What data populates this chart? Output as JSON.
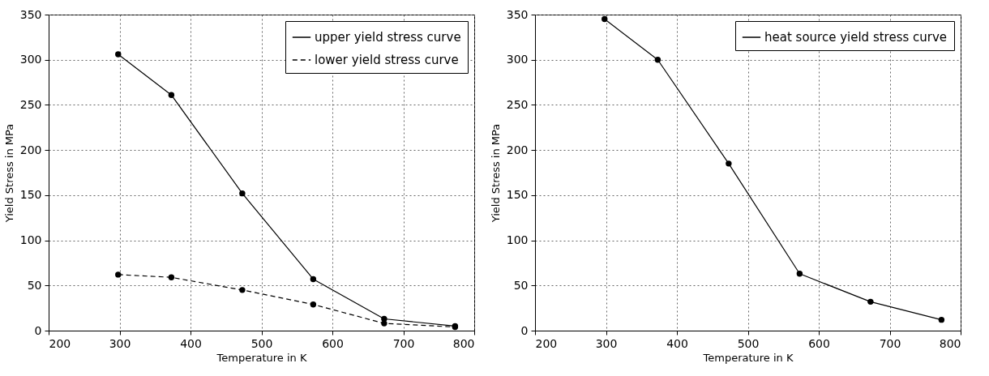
{
  "chart_data": [
    {
      "type": "line",
      "xlabel": "Temperature in K",
      "ylabel": "Yield Stress in MPa",
      "x": [
        298,
        373,
        473,
        573,
        673,
        773
      ],
      "xlim": [
        200,
        800
      ],
      "xticks": [
        200,
        300,
        400,
        500,
        600,
        700,
        800
      ],
      "ylim": [
        0,
        350
      ],
      "yticks": [
        0,
        50,
        100,
        150,
        200,
        250,
        300,
        350
      ],
      "grid": true,
      "legend": "top right",
      "marker": "circle",
      "series": [
        {
          "name": "upper yield stress curve",
          "color": "#000000",
          "line_style": "solid",
          "values": [
            306,
            261,
            152,
            57,
            13,
            5
          ]
        },
        {
          "name": "lower yield stress curve",
          "color": "#000000",
          "line_style": "dashed",
          "values": [
            62,
            59,
            45,
            29,
            8,
            4
          ]
        }
      ]
    },
    {
      "type": "line",
      "xlabel": "Temperature in K",
      "ylabel": "Yield Stress in MPa",
      "x": [
        298,
        373,
        473,
        573,
        673,
        773
      ],
      "xlim": [
        200,
        800
      ],
      "xticks": [
        200,
        300,
        400,
        500,
        600,
        700,
        800
      ],
      "ylim": [
        0,
        350
      ],
      "yticks": [
        0,
        50,
        100,
        150,
        200,
        250,
        300,
        350
      ],
      "grid": true,
      "legend": "top right",
      "marker": "circle",
      "series": [
        {
          "name": "heat source yield stress curve",
          "color": "#000000",
          "line_style": "solid",
          "values": [
            345,
            300,
            185,
            63,
            32,
            12
          ]
        }
      ]
    }
  ]
}
